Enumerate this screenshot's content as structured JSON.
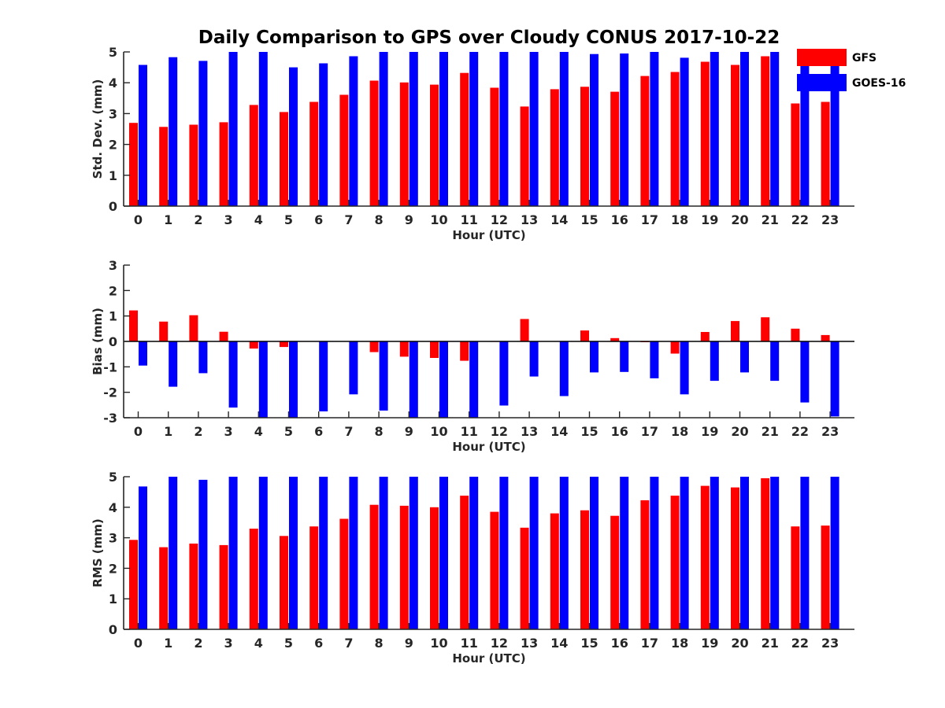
{
  "title": "Daily Comparison to GPS over Cloudy CONUS 2017-10-22",
  "colors": {
    "gfs": "#ff0000",
    "goes": "#0000ff",
    "axis": "#262626"
  },
  "legend": [
    {
      "name": "GFS",
      "color": "#ff0000"
    },
    {
      "name": "GOES-16",
      "color": "#0000ff"
    }
  ],
  "chart_data": [
    {
      "type": "bar",
      "xlabel": "Hour (UTC)",
      "ylabel": "Std. Dev. (mm)",
      "ylim": [
        0,
        5
      ],
      "yticks": [
        0,
        1,
        2,
        3,
        4,
        5
      ],
      "categories": [
        "0",
        "1",
        "2",
        "3",
        "4",
        "5",
        "6",
        "7",
        "8",
        "9",
        "10",
        "11",
        "12",
        "13",
        "14",
        "15",
        "16",
        "17",
        "18",
        "19",
        "20",
        "21",
        "22",
        "23"
      ],
      "series": [
        {
          "name": "GFS",
          "values": [
            2.7,
            2.57,
            2.64,
            2.72,
            3.28,
            3.05,
            3.38,
            3.61,
            4.07,
            4.01,
            3.94,
            4.32,
            3.84,
            3.23,
            3.79,
            3.87,
            3.71,
            4.22,
            4.35,
            4.68,
            4.58,
            4.86,
            3.33,
            3.38
          ]
        },
        {
          "name": "GOES-16",
          "values": [
            4.58,
            4.83,
            4.71,
            5.0,
            5.0,
            4.5,
            4.63,
            4.86,
            5.0,
            5.0,
            5.0,
            5.0,
            5.0,
            5.0,
            5.0,
            4.93,
            4.95,
            5.0,
            4.81,
            5.0,
            5.0,
            5.0,
            4.96,
            4.72
          ]
        }
      ]
    },
    {
      "type": "bar",
      "xlabel": "Hour (UTC)",
      "ylabel": "Bias (mm)",
      "ylim": [
        -3,
        3
      ],
      "yticks": [
        -3,
        -2,
        -1,
        0,
        1,
        2,
        3
      ],
      "categories": [
        "0",
        "1",
        "2",
        "3",
        "4",
        "5",
        "6",
        "7",
        "8",
        "9",
        "10",
        "11",
        "12",
        "13",
        "14",
        "15",
        "16",
        "17",
        "18",
        "19",
        "20",
        "21",
        "22",
        "23"
      ],
      "series": [
        {
          "name": "GFS",
          "values": [
            1.22,
            0.78,
            1.03,
            0.38,
            -0.28,
            -0.22,
            0.0,
            0.0,
            -0.42,
            -0.6,
            -0.65,
            -0.76,
            -0.02,
            0.88,
            0.0,
            0.43,
            0.13,
            -0.03,
            -0.48,
            0.37,
            0.8,
            0.95,
            0.5,
            0.25
          ]
        },
        {
          "name": "GOES-16",
          "values": [
            -0.95,
            -1.78,
            -1.25,
            -2.6,
            -3.0,
            -3.0,
            -2.75,
            -2.08,
            -2.72,
            -3.0,
            -3.0,
            -3.0,
            -2.52,
            -1.38,
            -2.15,
            -1.22,
            -1.2,
            -1.45,
            -2.08,
            -1.55,
            -1.22,
            -1.55,
            -2.4,
            -2.95
          ]
        }
      ]
    },
    {
      "type": "bar",
      "xlabel": "Hour (UTC)",
      "ylabel": "RMS (mm)",
      "ylim": [
        0,
        5
      ],
      "yticks": [
        0,
        1,
        2,
        3,
        4,
        5
      ],
      "categories": [
        "0",
        "1",
        "2",
        "3",
        "4",
        "5",
        "6",
        "7",
        "8",
        "9",
        "10",
        "11",
        "12",
        "13",
        "14",
        "15",
        "16",
        "17",
        "18",
        "19",
        "20",
        "21",
        "22",
        "23"
      ],
      "series": [
        {
          "name": "GFS",
          "values": [
            2.93,
            2.69,
            2.81,
            2.76,
            3.3,
            3.06,
            3.37,
            3.62,
            4.08,
            4.05,
            4.0,
            4.38,
            3.85,
            3.33,
            3.8,
            3.9,
            3.72,
            4.23,
            4.38,
            4.7,
            4.65,
            4.95,
            3.37,
            3.4
          ]
        },
        {
          "name": "GOES-16",
          "values": [
            4.68,
            5.0,
            4.9,
            5.0,
            5.0,
            5.0,
            5.0,
            5.0,
            5.0,
            5.0,
            5.0,
            5.0,
            5.0,
            5.0,
            5.0,
            5.0,
            5.0,
            5.0,
            5.0,
            5.0,
            5.0,
            5.0,
            5.0,
            5.0
          ]
        }
      ]
    }
  ]
}
